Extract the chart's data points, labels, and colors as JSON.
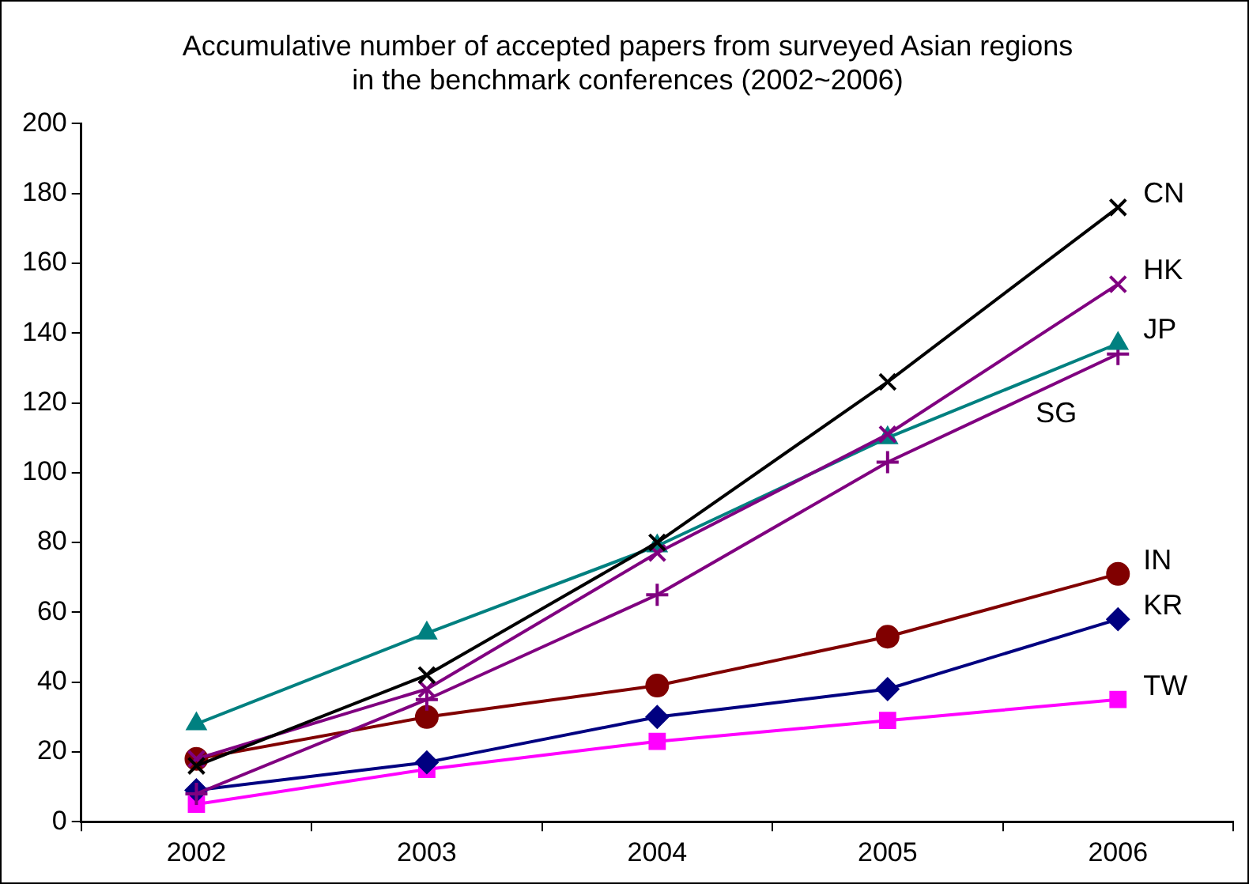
{
  "chart_data": {
    "type": "line",
    "title": "Accumulative number of accepted papers from surveyed Asian regions\nin the benchmark conferences (2002~2006)",
    "categories": [
      "2002",
      "2003",
      "2004",
      "2005",
      "2006"
    ],
    "series": [
      {
        "name": "CN",
        "color": "#000000",
        "marker": "cross",
        "values": [
          16,
          42,
          80,
          126,
          176
        ]
      },
      {
        "name": "HK",
        "color": "#800080",
        "marker": "cross",
        "values": [
          18,
          38,
          77,
          111,
          154
        ]
      },
      {
        "name": "JP",
        "color": "#008080",
        "marker": "triangle",
        "values": [
          28,
          54,
          79,
          110,
          137
        ]
      },
      {
        "name": "SG",
        "color": "#800080",
        "marker": "plus",
        "values": [
          8,
          35,
          65,
          103,
          134
        ]
      },
      {
        "name": "IN",
        "color": "#800000",
        "marker": "circle",
        "values": [
          18,
          30,
          39,
          53,
          71
        ]
      },
      {
        "name": "KR",
        "color": "#000080",
        "marker": "diamond",
        "values": [
          9,
          17,
          30,
          38,
          58
        ]
      },
      {
        "name": "TW",
        "color": "#ff00ff",
        "marker": "square",
        "values": [
          5,
          15,
          23,
          29,
          35
        ]
      }
    ],
    "ylim": [
      0,
      200
    ],
    "yticks": [
      0,
      20,
      40,
      60,
      80,
      100,
      120,
      140,
      160,
      180,
      200
    ],
    "grid": false,
    "legend": false
  }
}
